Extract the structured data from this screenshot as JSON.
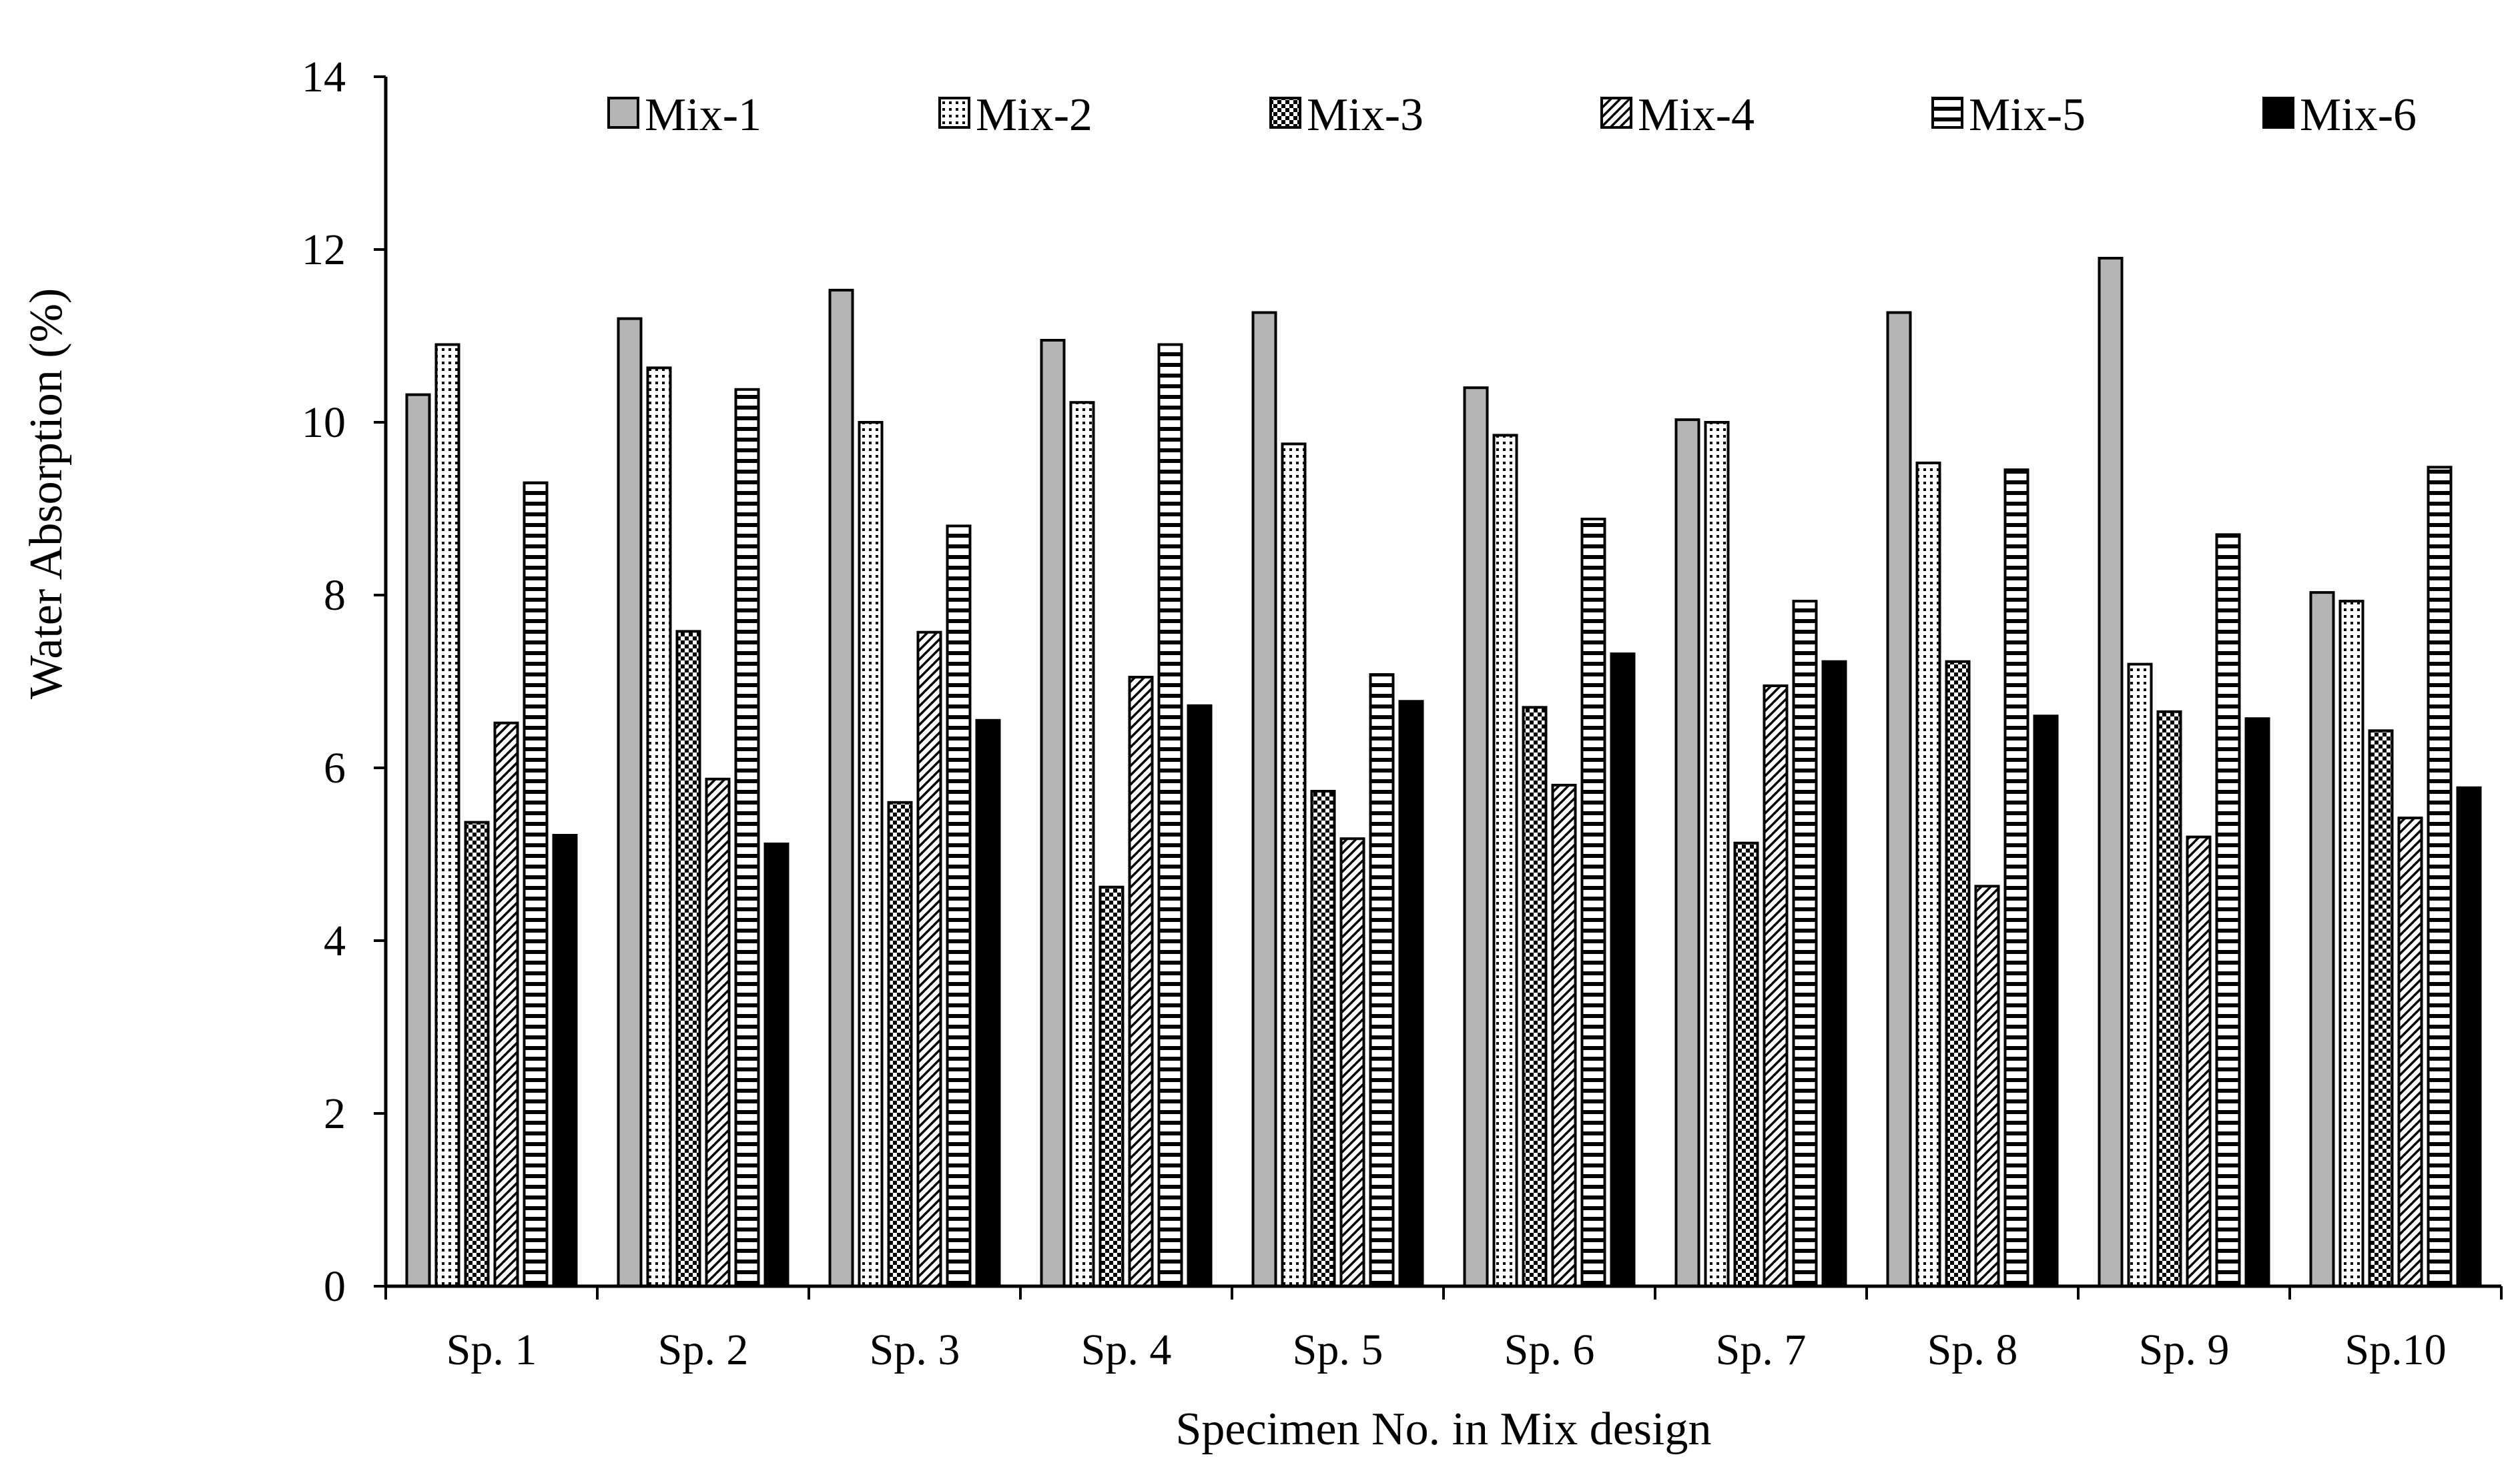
{
  "chart_data": {
    "type": "bar",
    "title": "",
    "xlabel": "Specimen No. in Mix design",
    "ylabel": "Water Absorption (%)",
    "ylim": [
      0,
      14
    ],
    "yticks": [
      "0",
      "2",
      "4",
      "6",
      "8",
      "10",
      "12",
      "14"
    ],
    "grid": false,
    "legend_position": "top",
    "categories": [
      "Sp. 1",
      "Sp. 2",
      "Sp. 3",
      "Sp. 4",
      "Sp. 5",
      "Sp. 6",
      "Sp. 7",
      "Sp. 8",
      "Sp. 9",
      "Sp.10"
    ],
    "series": [
      {
        "name": "Mix-1",
        "pattern": "solid-gray",
        "values": [
          10.32,
          11.2,
          11.53,
          10.95,
          11.27,
          10.4,
          10.03,
          11.27,
          11.9,
          8.03
        ]
      },
      {
        "name": "Mix-2",
        "pattern": "fine-dots",
        "values": [
          10.9,
          10.63,
          10.0,
          10.23,
          9.75,
          9.85,
          10.0,
          9.53,
          7.2,
          7.93
        ]
      },
      {
        "name": "Mix-3",
        "pattern": "dense-checker",
        "values": [
          5.37,
          7.58,
          5.6,
          4.62,
          5.73,
          6.7,
          5.13,
          7.23,
          6.65,
          6.43
        ]
      },
      {
        "name": "Mix-4",
        "pattern": "diagonal-hatch",
        "values": [
          6.52,
          5.87,
          7.57,
          7.05,
          5.18,
          5.8,
          6.95,
          4.63,
          5.2,
          5.42
        ]
      },
      {
        "name": "Mix-5",
        "pattern": "horizontal-stripes",
        "values": [
          9.3,
          10.38,
          8.8,
          10.9,
          7.08,
          8.88,
          7.93,
          9.45,
          8.7,
          9.48
        ]
      },
      {
        "name": "Mix-6",
        "pattern": "solid-black",
        "values": [
          5.22,
          5.12,
          6.55,
          6.72,
          6.77,
          7.32,
          7.23,
          6.6,
          6.57,
          5.77
        ]
      }
    ],
    "colors": {
      "mix1_fill": "#b4b4b4",
      "mix6_fill": "#000000",
      "stroke": "#000000"
    }
  }
}
